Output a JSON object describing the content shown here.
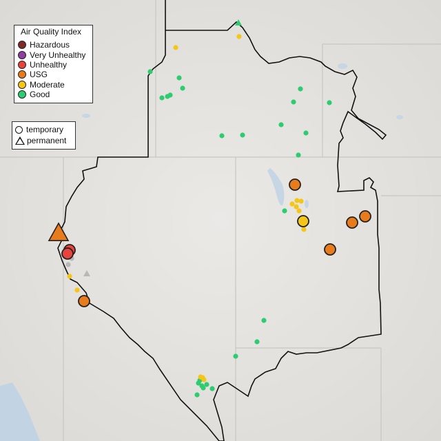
{
  "legend": {
    "title": "Air Quality Index",
    "categories": [
      {
        "label": "Hazardous",
        "color": "#7e2a2a"
      },
      {
        "label": "Very Unhealthy",
        "color": "#8e3fa0"
      },
      {
        "label": "Unhealthy",
        "color": "#e8433c"
      },
      {
        "label": "USG",
        "color": "#e87b1c"
      },
      {
        "label": "Moderate",
        "color": "#f5c518"
      },
      {
        "label": "Good",
        "color": "#2ecc71"
      }
    ],
    "types": [
      {
        "label": "temporary",
        "shape": "circle"
      },
      {
        "label": "permanent",
        "shape": "triangle"
      }
    ]
  },
  "colors": {
    "land": "#e4e2df",
    "water": "#c2d4e4",
    "state_border": "#c8c6c4",
    "region_border": "#111111"
  }
}
